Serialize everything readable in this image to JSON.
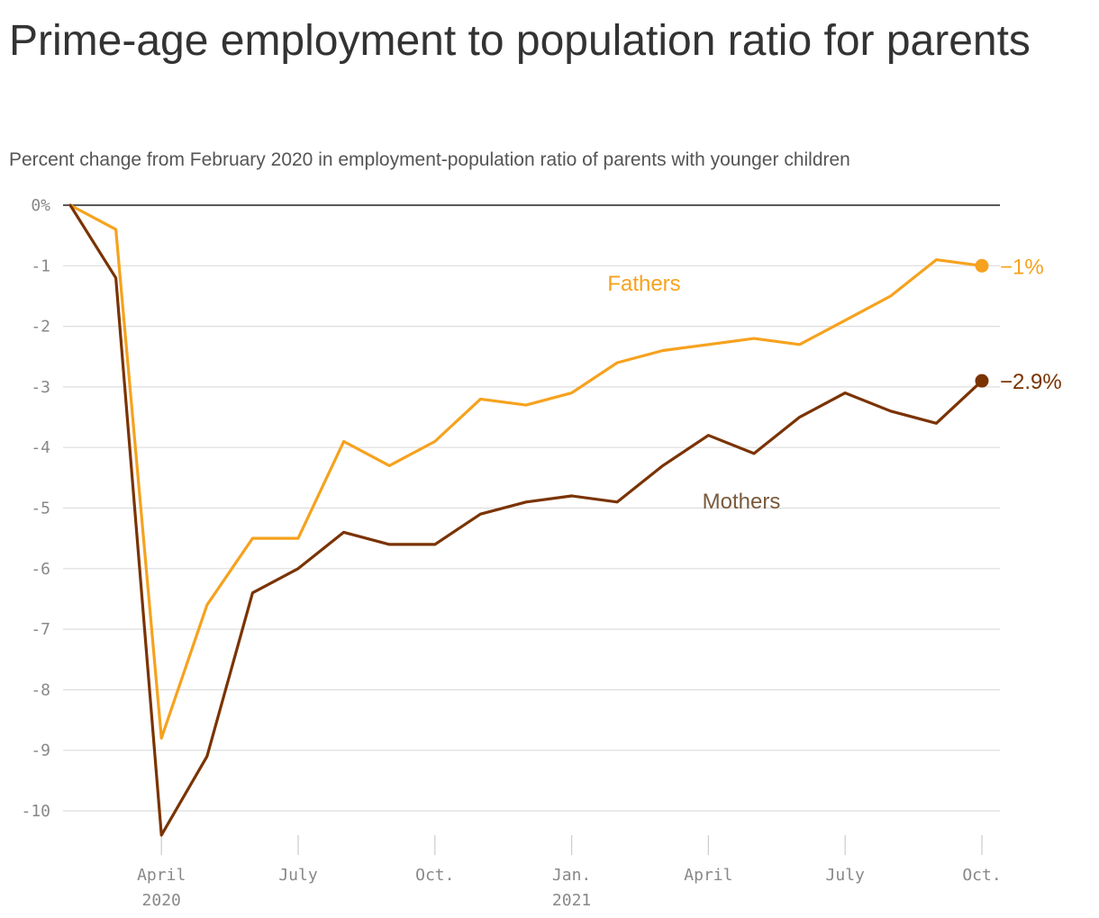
{
  "title": "Prime-age employment to population ratio for parents",
  "subtitle": "Percent change from February 2020 in employment-population ratio of parents with younger children",
  "chart_data": {
    "type": "line",
    "ylim": [
      -10.4,
      0
    ],
    "y_ticks": [
      0,
      -1,
      -2,
      -3,
      -4,
      -5,
      -6,
      -7,
      -8,
      -9,
      -10
    ],
    "y_tick_labels": [
      "0%",
      "-1",
      "-2",
      "-3",
      "-4",
      "-5",
      "-6",
      "-7",
      "-8",
      "-9",
      "-10"
    ],
    "grid": true,
    "x": [
      "2020-02",
      "2020-03",
      "2020-04",
      "2020-05",
      "2020-06",
      "2020-07",
      "2020-08",
      "2020-09",
      "2020-10",
      "2020-11",
      "2020-12",
      "2021-01",
      "2021-02",
      "2021-03",
      "2021-04",
      "2021-05",
      "2021-06",
      "2021-07",
      "2021-08",
      "2021-09",
      "2021-10"
    ],
    "x_ticks": [
      {
        "x": "2020-04",
        "label": "April",
        "year": "2020"
      },
      {
        "x": "2020-07",
        "label": "July",
        "year": ""
      },
      {
        "x": "2020-10",
        "label": "Oct.",
        "year": ""
      },
      {
        "x": "2021-01",
        "label": "Jan.",
        "year": "2021"
      },
      {
        "x": "2021-04",
        "label": "April",
        "year": ""
      },
      {
        "x": "2021-07",
        "label": "July",
        "year": ""
      },
      {
        "x": "2021-10",
        "label": "Oct.",
        "year": ""
      }
    ],
    "series": [
      {
        "name": "Fathers",
        "color": "#f6a21e",
        "end_label": "−1%",
        "values": [
          0,
          -0.4,
          -8.8,
          -6.6,
          -5.5,
          -5.5,
          -3.9,
          -4.3,
          -3.9,
          -3.2,
          -3.3,
          -3.1,
          -2.6,
          -2.4,
          -2.3,
          -2.2,
          -2.3,
          -1.9,
          -1.5,
          -0.9,
          -1.0
        ]
      },
      {
        "name": "Mothers",
        "color": "#7a3300",
        "label_color": "#7a5a3c",
        "end_label": "−2.9%",
        "values": [
          0,
          -1.2,
          -10.4,
          -9.1,
          -6.4,
          -6.0,
          -5.4,
          -5.6,
          -5.6,
          -5.1,
          -4.9,
          -4.8,
          -4.9,
          -4.3,
          -3.8,
          -4.1,
          -3.5,
          -3.1,
          -3.4,
          -3.6,
          -2.9
        ]
      }
    ]
  }
}
